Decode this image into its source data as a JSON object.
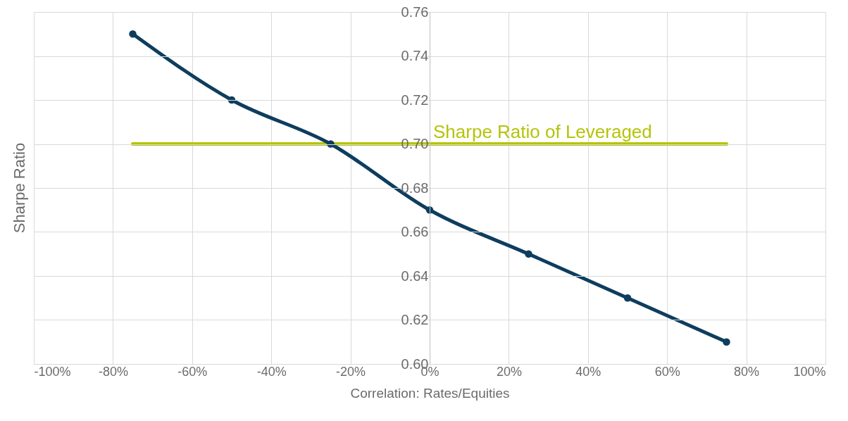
{
  "chart_data": {
    "type": "line",
    "xlabel": "Correlation: Rates/Equities",
    "ylabel": "Sharpe Ratio",
    "x": [
      -75,
      -50,
      -25,
      0,
      25,
      50,
      75
    ],
    "series": [
      {
        "color": "#0e3d5e",
        "values": [
          0.75,
          0.72,
          0.7,
          0.67,
          0.65,
          0.63,
          0.61
        ]
      },
      {
        "name": "Sharpe Ratio of Leveraged",
        "color": "#b5c40a",
        "x": [
          -75,
          75
        ],
        "values": [
          0.7,
          0.7
        ],
        "marker": "none"
      }
    ],
    "xlim": [
      -100,
      100
    ],
    "xticks": [
      {
        "value": -100,
        "label": "-100%"
      },
      {
        "value": -80,
        "label": "-80%"
      },
      {
        "value": -60,
        "label": "-60%"
      },
      {
        "value": -40,
        "label": "-40%"
      },
      {
        "value": -20,
        "label": "-20%"
      },
      {
        "value": 0,
        "label": "0%"
      },
      {
        "value": 20,
        "label": "20%"
      },
      {
        "value": 40,
        "label": "40%"
      },
      {
        "value": 60,
        "label": "60%"
      },
      {
        "value": 80,
        "label": "80%"
      },
      {
        "value": 100,
        "label": "100%"
      }
    ],
    "ylim": [
      0.6,
      0.76
    ],
    "yticks": [
      {
        "value": 0.6,
        "label": "0.60"
      },
      {
        "value": 0.62,
        "label": "0.62"
      },
      {
        "value": 0.64,
        "label": "0.64"
      },
      {
        "value": 0.66,
        "label": "0.66"
      },
      {
        "value": 0.68,
        "label": "0.68"
      },
      {
        "value": 0.7,
        "label": "0.70"
      },
      {
        "value": 0.72,
        "label": "0.72"
      },
      {
        "value": 0.74,
        "label": "0.74"
      },
      {
        "value": 0.76,
        "label": "0.76"
      }
    ],
    "grid": true,
    "marker": "circle",
    "line_style": "solid"
  }
}
